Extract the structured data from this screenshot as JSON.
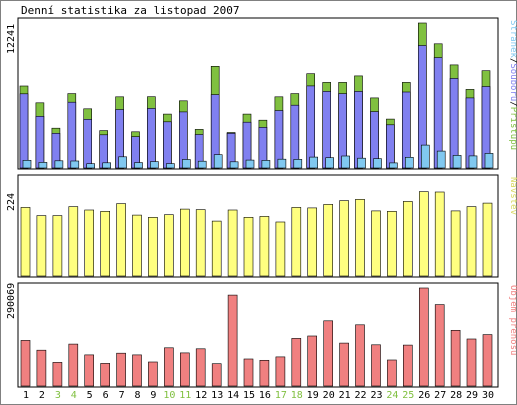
{
  "chart_data": {
    "type": "bar",
    "title": "Denní statistika za listopad 2007",
    "categories": [
      "1",
      "2",
      "3",
      "4",
      "5",
      "6",
      "7",
      "8",
      "9",
      "10",
      "11",
      "12",
      "13",
      "14",
      "15",
      "16",
      "17",
      "18",
      "19",
      "20",
      "21",
      "22",
      "23",
      "24",
      "25",
      "26",
      "27",
      "28",
      "29",
      "30"
    ],
    "weekend_days": [
      "3",
      "4",
      "10",
      "11",
      "17",
      "18",
      "24",
      "25"
    ],
    "colors": {
      "pristupy": "#80c040",
      "soubory": "#8080f0",
      "stranky": "#80c8f0",
      "navstevy": "#ffff80",
      "prenos": "#f08080",
      "weekday_label": "#000000",
      "weekend_label": "#80c040"
    },
    "panels": [
      {
        "id": "hits",
        "ymax_label": "12241",
        "ylim": [
          0,
          12241
        ],
        "legend": [
          "Stránek",
          "Souborů",
          "Přístupů"
        ],
        "series": [
          {
            "name": "Přístupů",
            "values": [
              6926,
              5508,
              3364,
              6284,
              4996,
              3160,
              6009,
              3058,
              6020,
              4547,
              5669,
              3262,
              8585,
              3000,
              4547,
              4036,
              6009,
              6284,
              7962,
              7223,
              7223,
              7777,
              5917,
              4132,
              7223,
              12241,
              10489,
              8707,
              6635,
              8215
            ]
          },
          {
            "name": "Souborů",
            "values": [
              6261,
              4367,
              2929,
              5554,
              4108,
              2800,
              4937,
              2645,
              5029,
              3898,
              4733,
              2830,
              6194,
              2929,
              3864,
              3436,
              4855,
              5298,
              6927,
              6463,
              6278,
              6463,
              4759,
              3644,
              6418,
              10343,
              9322,
              7563,
              5917,
              6880
            ]
          },
          {
            "name": "Stránek",
            "values": [
              646,
              471,
              608,
              589,
              363,
              441,
              942,
              457,
              539,
              373,
              720,
              577,
              1125,
              520,
              668,
              641,
              741,
              730,
              916,
              869,
              1011,
              824,
              785,
              434,
              906,
              1934,
              1427,
              1063,
              1021,
              1233
            ]
          }
        ]
      },
      {
        "id": "visits",
        "ymax_label": "224",
        "ylim": [
          0,
          224
        ],
        "legend": [
          "Návštěv"
        ],
        "series": [
          {
            "name": "Návštěv",
            "values": [
              160,
              141,
              141,
              162,
              154,
              151,
              169,
              142,
              137,
              143,
              156,
              155,
              128,
              154,
              137,
              139,
              126,
              160,
              159,
              167,
              176,
              179,
              152,
              151,
              174,
              197,
              196,
              152,
              162,
              170
            ]
          }
        ]
      },
      {
        "id": "transfer",
        "ymax_label": "290069",
        "ylim": [
          0,
          290069
        ],
        "legend": [
          "Objem přenosu"
        ],
        "series": [
          {
            "name": "Objem přenosu",
            "values": [
              135000,
              106000,
              70000,
              124000,
              92000,
              67000,
              97000,
              92000,
              71000,
              113000,
              98000,
              110000,
              66000,
              269000,
              80000,
              76000,
              86000,
              141000,
              148000,
              193000,
              127000,
              181000,
              122000,
              77000,
              121000,
              290069,
              241000,
              165000,
              139000,
              152000
            ]
          }
        ]
      }
    ]
  }
}
